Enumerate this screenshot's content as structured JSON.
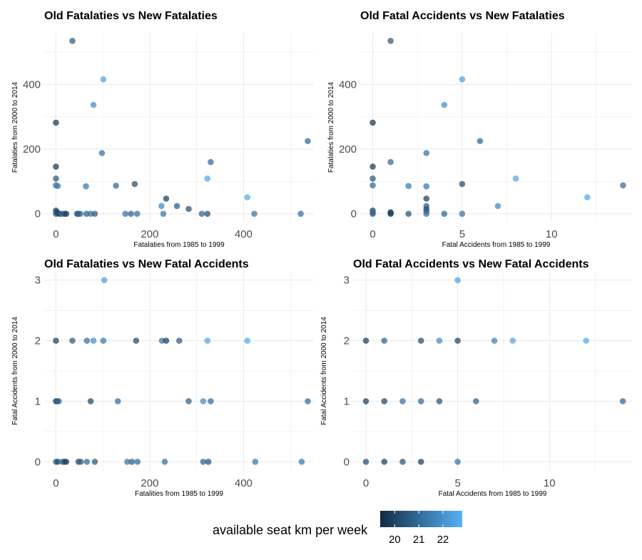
{
  "chart_data": [
    {
      "type": "scatter",
      "title": "Old Fatalaties vs New Fatalaties",
      "xlabel": "Fatalaties from 1985 to 1999",
      "ylabel": "Fatalaties from 2000 to 2014",
      "xlim": [
        -25,
        550
      ],
      "ylim": [
        -25,
        560
      ],
      "xticks": [
        0,
        200,
        400
      ],
      "yticks": [
        0,
        200,
        400
      ],
      "grid": true,
      "points": [
        {
          "x": 35,
          "y": 535,
          "c": 20.6
        },
        {
          "x": 101,
          "y": 416,
          "c": 22.4
        },
        {
          "x": 80,
          "y": 337,
          "c": 21.9
        },
        {
          "x": 0,
          "y": 282,
          "c": 19.6
        },
        {
          "x": 537,
          "y": 225,
          "c": 20.9
        },
        {
          "x": 98,
          "y": 188,
          "c": 21.2
        },
        {
          "x": 330,
          "y": 160,
          "c": 21.0
        },
        {
          "x": 0,
          "y": 146,
          "c": 19.7
        },
        {
          "x": 0,
          "y": 109,
          "c": 20.5
        },
        {
          "x": 323,
          "y": 109,
          "c": 22.5
        },
        {
          "x": 168,
          "y": 92,
          "c": 20.2
        },
        {
          "x": 0,
          "y": 88,
          "c": 21.0
        },
        {
          "x": 4,
          "y": 86,
          "c": 21.4
        },
        {
          "x": 128,
          "y": 87,
          "c": 20.9
        },
        {
          "x": 64,
          "y": 85,
          "c": 21.3
        },
        {
          "x": 408,
          "y": 51,
          "c": 22.6
        },
        {
          "x": 235,
          "y": 47,
          "c": 19.8
        },
        {
          "x": 225,
          "y": 24,
          "c": 21.7
        },
        {
          "x": 258,
          "y": 24,
          "c": 20.6
        },
        {
          "x": 283,
          "y": 15,
          "c": 20.3
        },
        {
          "x": 0,
          "y": 10,
          "c": 19.8
        },
        {
          "x": 2,
          "y": 5,
          "c": 20.0
        },
        {
          "x": 0,
          "y": 0,
          "c": 20.5
        },
        {
          "x": 5,
          "y": 1,
          "c": 19.9
        },
        {
          "x": 8,
          "y": 0,
          "c": 20.3
        },
        {
          "x": 12,
          "y": 0,
          "c": 20.8
        },
        {
          "x": 18,
          "y": 0,
          "c": 20.4
        },
        {
          "x": 22,
          "y": 0,
          "c": 19.7
        },
        {
          "x": 45,
          "y": 0,
          "c": 20.1
        },
        {
          "x": 48,
          "y": 0,
          "c": 20.6
        },
        {
          "x": 52,
          "y": 0,
          "c": 20.9
        },
        {
          "x": 65,
          "y": 0,
          "c": 20.7
        },
        {
          "x": 74,
          "y": 0,
          "c": 21.1
        },
        {
          "x": 83,
          "y": 0,
          "c": 20.5
        },
        {
          "x": 148,
          "y": 0,
          "c": 21.2
        },
        {
          "x": 160,
          "y": 0,
          "c": 20.7
        },
        {
          "x": 173,
          "y": 0,
          "c": 21.0
        },
        {
          "x": 229,
          "y": 0,
          "c": 21.3
        },
        {
          "x": 311,
          "y": 0,
          "c": 20.8
        },
        {
          "x": 323,
          "y": 0,
          "c": 20.3
        },
        {
          "x": 423,
          "y": 0,
          "c": 21.2
        },
        {
          "x": 522,
          "y": 0,
          "c": 21.1
        }
      ]
    },
    {
      "type": "scatter",
      "title": "Old Fatal Accidents vs New Fatalaties",
      "xlabel": "Fatal Accidents from 1985 to 1999",
      "ylabel": "Fatalaties from 2000 to 2014",
      "xlim": [
        -0.7,
        14.5
      ],
      "ylim": [
        -25,
        560
      ],
      "xticks": [
        0,
        5,
        10
      ],
      "yticks": [
        0,
        200,
        400
      ],
      "grid": true,
      "points": [
        {
          "x": 1,
          "y": 535,
          "c": 20.6
        },
        {
          "x": 5,
          "y": 416,
          "c": 22.4
        },
        {
          "x": 4,
          "y": 337,
          "c": 21.9
        },
        {
          "x": 0,
          "y": 282,
          "c": 19.6
        },
        {
          "x": 6,
          "y": 225,
          "c": 20.9
        },
        {
          "x": 3,
          "y": 188,
          "c": 21.2
        },
        {
          "x": 1,
          "y": 160,
          "c": 21.0
        },
        {
          "x": 0,
          "y": 146,
          "c": 19.7
        },
        {
          "x": 0,
          "y": 109,
          "c": 20.5
        },
        {
          "x": 8,
          "y": 109,
          "c": 22.5
        },
        {
          "x": 5,
          "y": 92,
          "c": 20.2
        },
        {
          "x": 0,
          "y": 88,
          "c": 21.0
        },
        {
          "x": 14,
          "y": 88,
          "c": 21.0
        },
        {
          "x": 2,
          "y": 86,
          "c": 21.4
        },
        {
          "x": 3,
          "y": 85,
          "c": 21.3
        },
        {
          "x": 12,
          "y": 51,
          "c": 22.6
        },
        {
          "x": 3,
          "y": 47,
          "c": 19.8
        },
        {
          "x": 7,
          "y": 24,
          "c": 21.7
        },
        {
          "x": 3,
          "y": 24,
          "c": 20.6
        },
        {
          "x": 3,
          "y": 15,
          "c": 20.3
        },
        {
          "x": 0,
          "y": 10,
          "c": 19.8
        },
        {
          "x": 1,
          "y": 5,
          "c": 20.0
        },
        {
          "x": 3,
          "y": 8,
          "c": 20.5
        },
        {
          "x": 0,
          "y": 0,
          "c": 20.5
        },
        {
          "x": 0,
          "y": 3,
          "c": 21.0
        },
        {
          "x": 1,
          "y": 0,
          "c": 19.7
        },
        {
          "x": 1,
          "y": 2,
          "c": 20.1
        },
        {
          "x": 2,
          "y": 0,
          "c": 20.4
        },
        {
          "x": 3,
          "y": 0,
          "c": 21.1
        },
        {
          "x": 4,
          "y": 0,
          "c": 20.8
        },
        {
          "x": 5,
          "y": 0,
          "c": 21.2
        }
      ]
    },
    {
      "type": "scatter",
      "title": "Old Fatalaties vs New Fatal Accidents",
      "xlabel": "Fatalities from 1985 to 1999",
      "ylabel": "Fatal Accidents from 2000 to 2014",
      "xlim": [
        -25,
        550
      ],
      "ylim": [
        -0.15,
        3.15
      ],
      "xticks": [
        0,
        200,
        400
      ],
      "yticks": [
        0,
        1,
        2,
        3
      ],
      "grid": true,
      "points": [
        {
          "x": 103,
          "y": 3,
          "c": 22.4
        },
        {
          "x": 0,
          "y": 2,
          "c": 19.9
        },
        {
          "x": 35,
          "y": 2,
          "c": 20.6
        },
        {
          "x": 66,
          "y": 2,
          "c": 21.1
        },
        {
          "x": 80,
          "y": 2,
          "c": 21.9
        },
        {
          "x": 101,
          "y": 2,
          "c": 21.3
        },
        {
          "x": 171,
          "y": 2,
          "c": 20.1
        },
        {
          "x": 226,
          "y": 2,
          "c": 21.3
        },
        {
          "x": 235,
          "y": 2,
          "c": 19.8
        },
        {
          "x": 263,
          "y": 2,
          "c": 20.6
        },
        {
          "x": 323,
          "y": 2,
          "c": 22.5
        },
        {
          "x": 408,
          "y": 2,
          "c": 22.6
        },
        {
          "x": 0,
          "y": 1,
          "c": 19.8
        },
        {
          "x": 3,
          "y": 1,
          "c": 20.4
        },
        {
          "x": 6,
          "y": 1,
          "c": 21.0
        },
        {
          "x": 74,
          "y": 1,
          "c": 20.1
        },
        {
          "x": 132,
          "y": 1,
          "c": 21.0
        },
        {
          "x": 283,
          "y": 1,
          "c": 20.7
        },
        {
          "x": 314,
          "y": 1,
          "c": 21.8
        },
        {
          "x": 330,
          "y": 1,
          "c": 21.0
        },
        {
          "x": 537,
          "y": 1,
          "c": 21.0
        },
        {
          "x": 0,
          "y": 0,
          "c": 20.6
        },
        {
          "x": 4,
          "y": 0,
          "c": 20.2
        },
        {
          "x": 14,
          "y": 0,
          "c": 20.8
        },
        {
          "x": 18,
          "y": 0,
          "c": 20.3
        },
        {
          "x": 22,
          "y": 0,
          "c": 19.8
        },
        {
          "x": 48,
          "y": 0,
          "c": 20.1
        },
        {
          "x": 53,
          "y": 0,
          "c": 20.6
        },
        {
          "x": 66,
          "y": 0,
          "c": 21.0
        },
        {
          "x": 83,
          "y": 0,
          "c": 20.5
        },
        {
          "x": 152,
          "y": 0,
          "c": 21.2
        },
        {
          "x": 162,
          "y": 0,
          "c": 20.7
        },
        {
          "x": 174,
          "y": 0,
          "c": 21.0
        },
        {
          "x": 232,
          "y": 0,
          "c": 21.1
        },
        {
          "x": 314,
          "y": 0,
          "c": 20.8
        },
        {
          "x": 325,
          "y": 0,
          "c": 20.3
        },
        {
          "x": 425,
          "y": 0,
          "c": 21.2
        },
        {
          "x": 524,
          "y": 0,
          "c": 21.3
        }
      ]
    },
    {
      "type": "scatter",
      "title": "Old Fatal Accidents vs New Fatal Accidents",
      "xlabel": "Fatal Accidents from 1985 to 1999",
      "ylabel": "Fatal Accidents from 2000 to 2014",
      "xlim": [
        -0.7,
        14.5
      ],
      "ylim": [
        -0.15,
        3.15
      ],
      "xticks": [
        0,
        5,
        10
      ],
      "yticks": [
        0,
        1,
        2,
        3
      ],
      "grid": true,
      "points": [
        {
          "x": 5,
          "y": 3,
          "c": 22.4
        },
        {
          "x": 0,
          "y": 2,
          "c": 19.9
        },
        {
          "x": 1,
          "y": 2,
          "c": 20.8
        },
        {
          "x": 3,
          "y": 2,
          "c": 20.3
        },
        {
          "x": 4,
          "y": 2,
          "c": 21.8
        },
        {
          "x": 5,
          "y": 2,
          "c": 20.0
        },
        {
          "x": 7,
          "y": 2,
          "c": 21.6
        },
        {
          "x": 8,
          "y": 2,
          "c": 22.5
        },
        {
          "x": 12,
          "y": 2,
          "c": 22.6
        },
        {
          "x": 0,
          "y": 1,
          "c": 19.8
        },
        {
          "x": 1,
          "y": 1,
          "c": 20.0
        },
        {
          "x": 2,
          "y": 1,
          "c": 21.2
        },
        {
          "x": 3,
          "y": 1,
          "c": 20.9
        },
        {
          "x": 4,
          "y": 1,
          "c": 20.4
        },
        {
          "x": 6,
          "y": 1,
          "c": 20.8
        },
        {
          "x": 14,
          "y": 1,
          "c": 21.0
        },
        {
          "x": 0,
          "y": 0,
          "c": 20.2
        },
        {
          "x": 1,
          "y": 0,
          "c": 19.8
        },
        {
          "x": 2,
          "y": 0,
          "c": 20.4
        },
        {
          "x": 3,
          "y": 0,
          "c": 19.9
        },
        {
          "x": 5,
          "y": 0,
          "c": 21.2
        }
      ]
    }
  ],
  "legend": {
    "title": "available seat km per week",
    "range": [
      19.4,
      22.8
    ],
    "ticks": [
      20,
      21,
      22
    ],
    "low_color": "#132B43",
    "high_color": "#56B1F7",
    "placement": "bottom"
  },
  "colors": {
    "grid": "#ebebeb",
    "point_low": "#132B43",
    "point_high": "#56B1F7"
  }
}
